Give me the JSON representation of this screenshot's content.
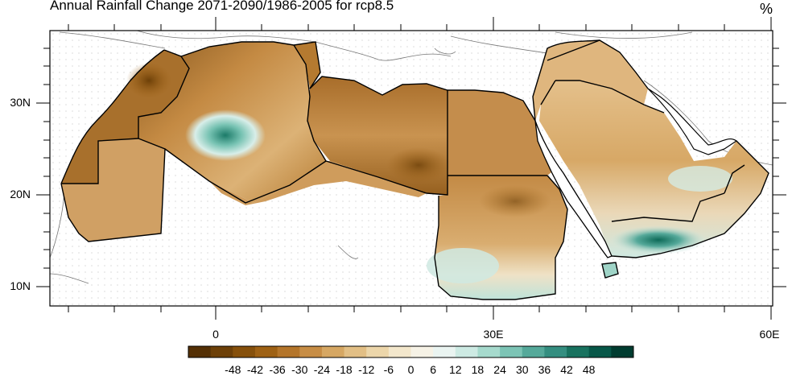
{
  "map": {
    "title": "Annual Rainfall Change 2071-2090/1986-2005 for rcp8.5",
    "unit": "%",
    "lat_labels": [
      "30N",
      "20N",
      "10N"
    ],
    "lon_labels": [
      "0",
      "30E",
      "60E"
    ],
    "colorbar": {
      "ticks": [
        "-48",
        "-42",
        "-36",
        "-30",
        "-24",
        "-18",
        "-12",
        "-6",
        "0",
        "6",
        "12",
        "18",
        "24",
        "30",
        "36",
        "42",
        "48"
      ],
      "colors": [
        "#543005",
        "#6d4008",
        "#86500b",
        "#9e6114",
        "#b4752a",
        "#c78d45",
        "#d6a763",
        "#e2bf85",
        "#ecd6aa",
        "#f3e7cc",
        "#f6f2e6",
        "#eaf4f1",
        "#cdeae3",
        "#a6dacd",
        "#7cc4b5",
        "#55a99a",
        "#348e80",
        "#18725f",
        "#075748",
        "#003c30"
      ]
    }
  }
}
